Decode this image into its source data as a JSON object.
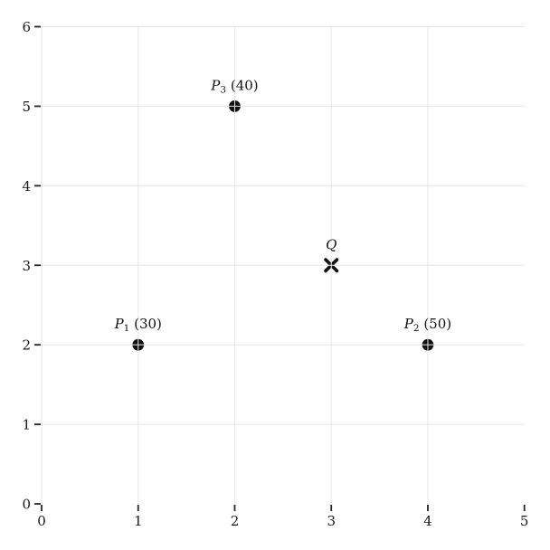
{
  "figure": {
    "background": "#ffffff",
    "grid_color": "#e6e6e6",
    "tick_color": "#262626",
    "text_color": "#1a1a1a",
    "marker_color": "#111111"
  },
  "chart_data": {
    "type": "scatter",
    "xlim": [
      0,
      5
    ],
    "ylim": [
      0,
      6
    ],
    "x_ticks": [
      0,
      1,
      2,
      3,
      4,
      5
    ],
    "y_ticks": [
      0,
      1,
      2,
      3,
      4,
      5,
      6
    ],
    "grid": true,
    "grid_over_markers": true,
    "grid_x_lines": [
      0,
      1,
      2,
      3,
      4
    ],
    "grid_y_lines": [
      1,
      2,
      3,
      4,
      5,
      6
    ],
    "points": [
      {
        "name": "P1",
        "x": 1,
        "y": 2,
        "marker": "circle",
        "value": 30,
        "label": {
          "base": "P",
          "sub": "1",
          "rest": " (30)"
        },
        "label_text": "P1 (30)"
      },
      {
        "name": "P2",
        "x": 4,
        "y": 2,
        "marker": "circle",
        "value": 50,
        "label": {
          "base": "P",
          "sub": "2",
          "rest": " (50)"
        },
        "label_text": "P2 (50)"
      },
      {
        "name": "P3",
        "x": 2,
        "y": 5,
        "marker": "circle",
        "value": 40,
        "label": {
          "base": "P",
          "sub": "3",
          "rest": " (40)"
        },
        "label_text": "P3 (40)"
      },
      {
        "name": "Q",
        "x": 3,
        "y": 3,
        "marker": "x",
        "label": {
          "base": "Q",
          "sub": "",
          "rest": ""
        },
        "label_text": "Q"
      }
    ]
  }
}
